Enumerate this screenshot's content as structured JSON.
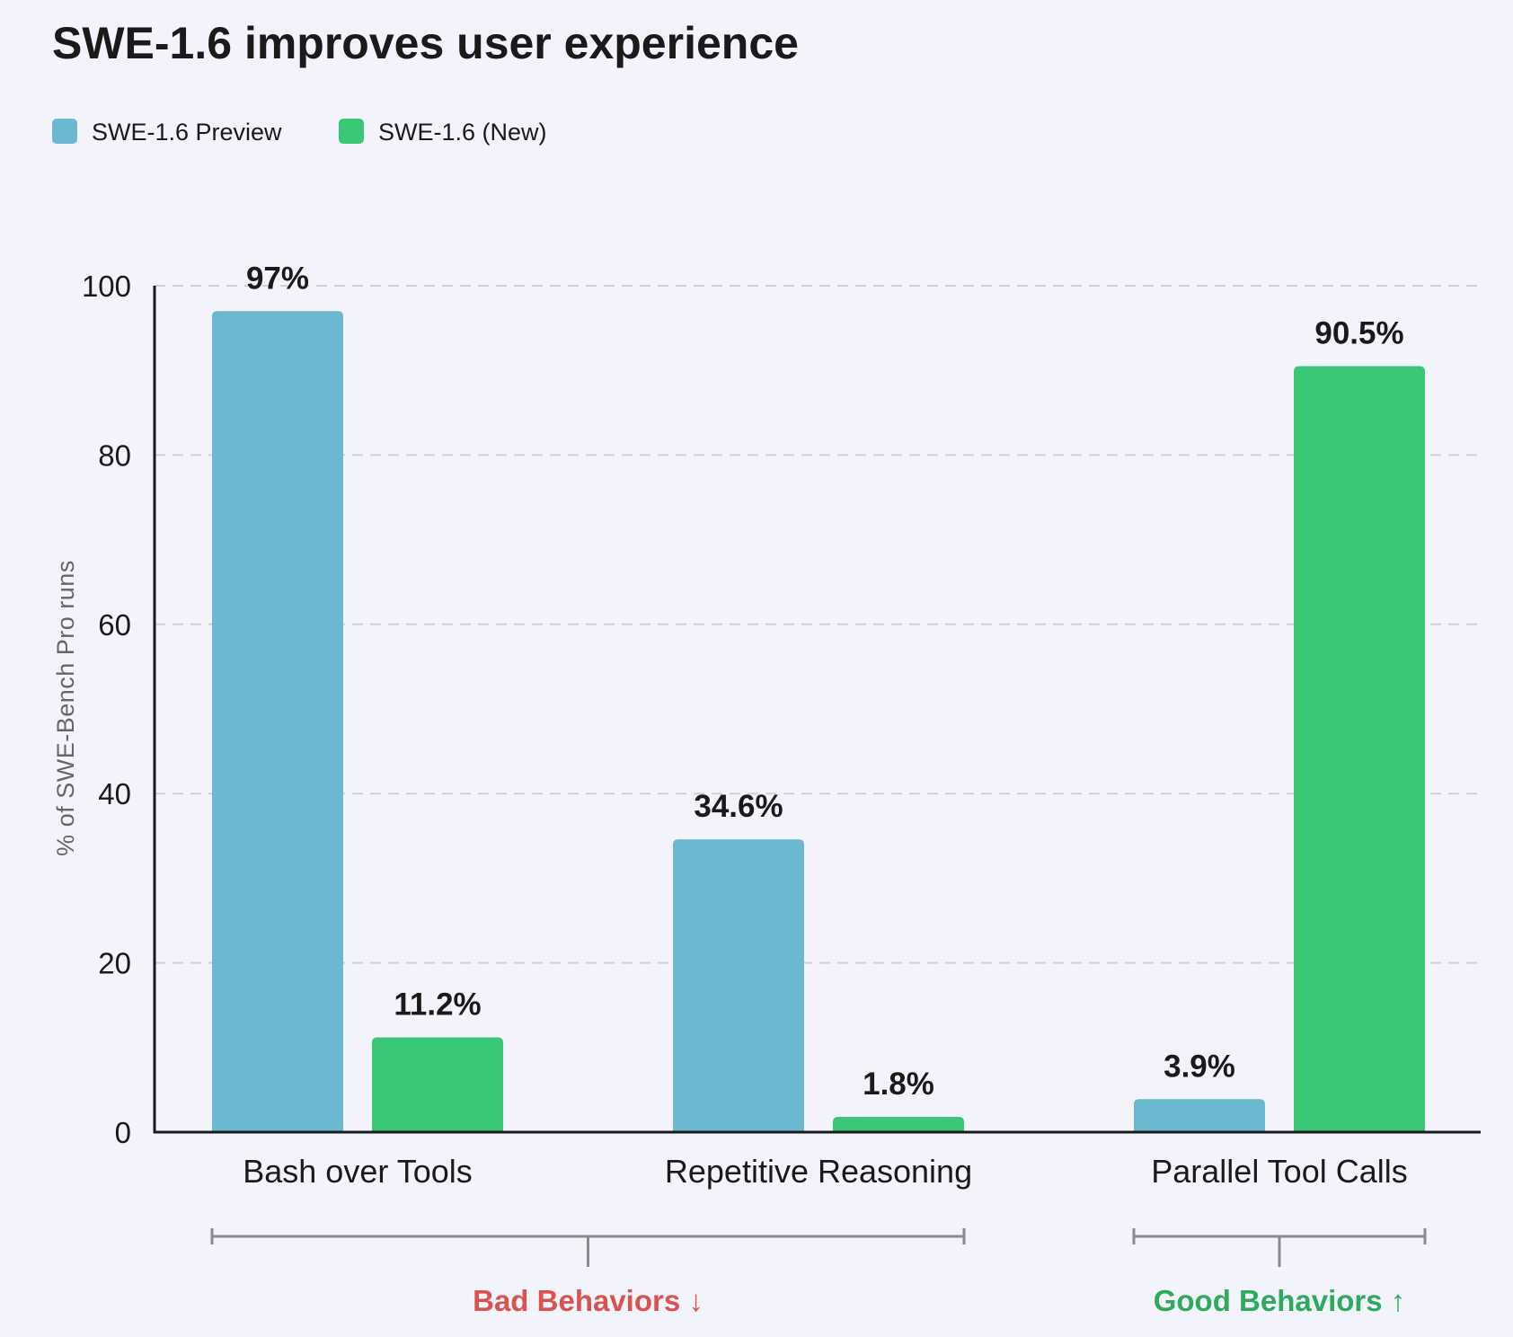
{
  "chart_data": {
    "type": "bar",
    "title": "SWE-1.6 improves user experience",
    "ylabel": "% of SWE-Bench Pro runs",
    "xlabel": "",
    "ylim": [
      0,
      100
    ],
    "yticks": [
      0,
      20,
      40,
      60,
      80,
      100
    ],
    "grid": true,
    "legend_position": "top-left",
    "categories": [
      "Bash over Tools",
      "Repetitive Reasoning",
      "Parallel Tool Calls"
    ],
    "series": [
      {
        "name": "SWE-1.6 Preview",
        "color": "#6ab9d0",
        "values": [
          97,
          34.6,
          3.9
        ],
        "labels": [
          "97%",
          "34.6%",
          "3.9%"
        ]
      },
      {
        "name": "SWE-1.6 (New)",
        "color": "#3ac877",
        "values": [
          11.2,
          1.8,
          90.5
        ],
        "labels": [
          "11.2%",
          "1.8%",
          "90.5%"
        ]
      }
    ],
    "groups": [
      {
        "label": "Bad Behaviors ↓",
        "categories": [
          "Bash over Tools",
          "Repetitive Reasoning"
        ],
        "color": "#d9534f"
      },
      {
        "label": "Good Behaviors ↑",
        "categories": [
          "Parallel Tool Calls"
        ],
        "color": "#2eaa5c"
      }
    ]
  }
}
